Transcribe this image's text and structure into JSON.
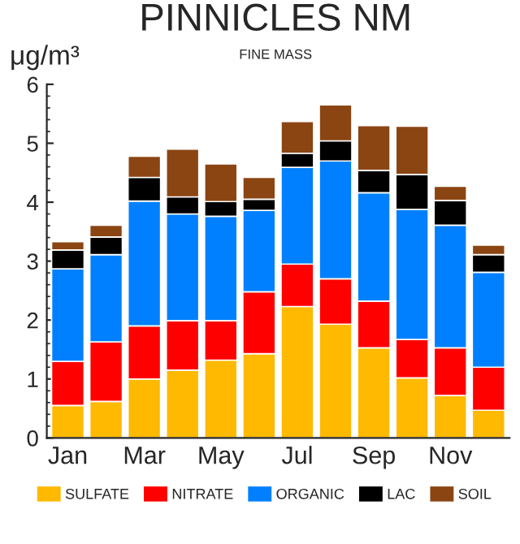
{
  "chart_data": {
    "type": "bar",
    "stacked": true,
    "title": "PINNICLES NM",
    "subtitle": "FINE MASS",
    "ylabel": "μg/m³",
    "categories": [
      "Jan",
      null,
      "Mar",
      null,
      "May",
      null,
      "Jul",
      null,
      "Sep",
      null,
      "Nov",
      null
    ],
    "series": [
      {
        "name": "SULFATE",
        "color": "#ffb900",
        "values": [
          0.55,
          0.62,
          1.0,
          1.15,
          1.32,
          1.43,
          2.23,
          1.93,
          1.53,
          1.02,
          0.72,
          0.47
        ]
      },
      {
        "name": "NITRATE",
        "color": "#ff0000",
        "values": [
          0.75,
          1.01,
          0.9,
          0.84,
          0.67,
          1.05,
          0.72,
          0.77,
          0.79,
          0.65,
          0.81,
          0.73
        ]
      },
      {
        "name": "ORGANIC",
        "color": "#0080ff",
        "values": [
          1.57,
          1.48,
          2.12,
          1.81,
          1.77,
          1.38,
          1.64,
          2.0,
          1.84,
          2.21,
          2.08,
          1.61
        ]
      },
      {
        "name": "LAC",
        "color": "#000000",
        "values": [
          0.32,
          0.3,
          0.4,
          0.29,
          0.25,
          0.19,
          0.24,
          0.34,
          0.38,
          0.59,
          0.42,
          0.3
        ]
      },
      {
        "name": "SOIL",
        "color": "#8b4513",
        "values": [
          0.14,
          0.2,
          0.36,
          0.81,
          0.64,
          0.37,
          0.54,
          0.61,
          0.76,
          0.82,
          0.24,
          0.16
        ]
      }
    ],
    "ylim": [
      0,
      6
    ],
    "yticks": [
      0,
      1,
      2,
      3,
      4,
      5,
      6
    ],
    "grid": false,
    "legend": "bottom"
  }
}
